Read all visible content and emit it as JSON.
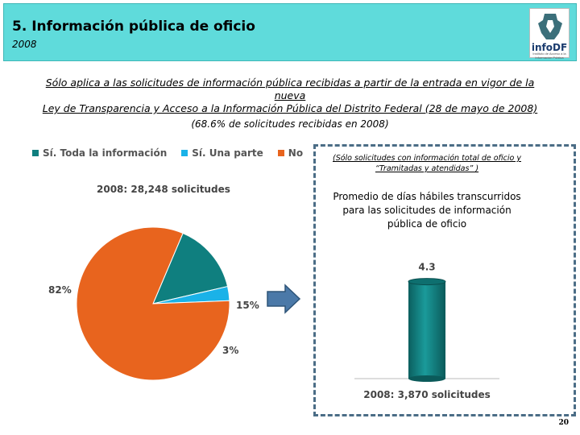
{
  "header": {
    "title": "5. Información pública de oficio",
    "year": "2008",
    "logo_text": "infoDF",
    "logo_sub": "Instituto de Acceso a la Información Pública"
  },
  "description": {
    "line1": "Sólo aplica a las solicitudes de información pública recibidas a partir de la entrada en vigor de la nueva",
    "line2": "Ley de Transparencia y Acceso a la Información Pública del Distrito Federal (28 de mayo de 2008)"
  },
  "note": "(68.6% de solicitudes recibidas en 2008)",
  "colors": {
    "teal": "#0f7f7f",
    "light_blue": "#1ab2e8",
    "orange": "#e8641e",
    "header_bg": "#5fdbdb",
    "arrow": "#4b79a8",
    "bar": "#107a7a"
  },
  "dashed_box": {
    "note_line1": "(Sólo solicitudes con información total de oficio y",
    "note_line2": "“Tramitadas y atendidas” )",
    "title_line1": "Promedio de días hábiles transcurridos",
    "title_line2": "para las solicitudes de información",
    "title_line3": "pública de oficio"
  },
  "page_number": "20",
  "chart_data": [
    {
      "type": "pie",
      "title": "2008: 28,248 solicitudes",
      "legend": [
        "Sí. Toda la información",
        "Sí. Una parte",
        "No"
      ],
      "labels": [
        "Sí. Toda la información",
        "Sí. Una parte",
        "No"
      ],
      "values": [
        15,
        3,
        82
      ],
      "value_labels": [
        "15%",
        "3%",
        "82%"
      ],
      "colors": [
        "#0f7f7f",
        "#1ab2e8",
        "#e8641e"
      ]
    },
    {
      "type": "bar",
      "title": "2008: 3,870 solicitudes",
      "categories": [
        "2008"
      ],
      "values": [
        4.3
      ],
      "value_labels": [
        "4.3"
      ],
      "ylim": [
        0,
        5
      ]
    }
  ]
}
